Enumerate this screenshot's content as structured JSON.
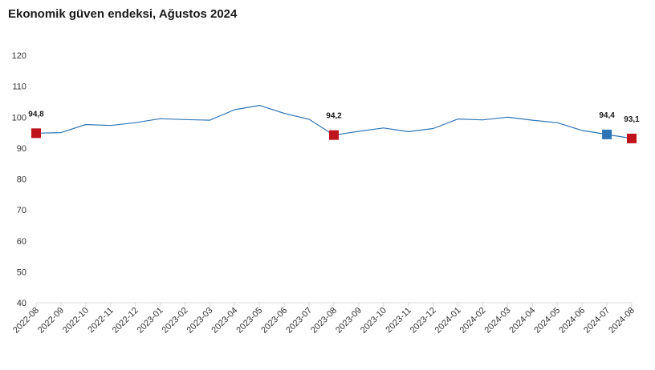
{
  "chart_data": {
    "type": "line",
    "title": "Ekonomik güven endeksi, Ağustos 2024",
    "xlabel": "",
    "ylabel": "",
    "ylim": [
      40,
      120
    ],
    "yticks": [
      "40",
      "50",
      "60",
      "70",
      "80",
      "90",
      "100",
      "110",
      "120"
    ],
    "grid": false,
    "legend": "none",
    "categories": [
      "2022-08",
      "2022-09",
      "2022-10",
      "2022-11",
      "2022-12",
      "2023-01",
      "2023-02",
      "2023-03",
      "2023-04",
      "2023-05",
      "2023-06",
      "2023-07",
      "2023-08",
      "2023-09",
      "2023-10",
      "2023-11",
      "2023-12",
      "2024-01",
      "2024-02",
      "2024-03",
      "2024-04",
      "2024-05",
      "2024-06",
      "2024-07",
      "2024-08"
    ],
    "series": [
      {
        "color": "#2e75b6",
        "values": [
          94.8,
          95.0,
          97.6,
          97.3,
          98.2,
          99.5,
          99.2,
          99.0,
          102.4,
          103.8,
          101.2,
          99.3,
          94.2,
          95.4,
          96.5,
          95.3,
          96.3,
          99.4,
          99.1,
          100.0,
          99.0,
          98.2,
          95.7,
          94.4,
          93.1
        ]
      }
    ],
    "highlighted_points": [
      {
        "category": "2022-08",
        "value": 94.8,
        "label": "94,8",
        "color": "#c0141c"
      },
      {
        "category": "2023-08",
        "value": 94.2,
        "label": "94,2",
        "color": "#c0141c"
      },
      {
        "category": "2024-07",
        "value": 94.4,
        "label": "94,4",
        "color": "#2e75b6"
      },
      {
        "category": "2024-08",
        "value": 93.1,
        "label": "93,1",
        "color": "#c0141c"
      }
    ]
  }
}
